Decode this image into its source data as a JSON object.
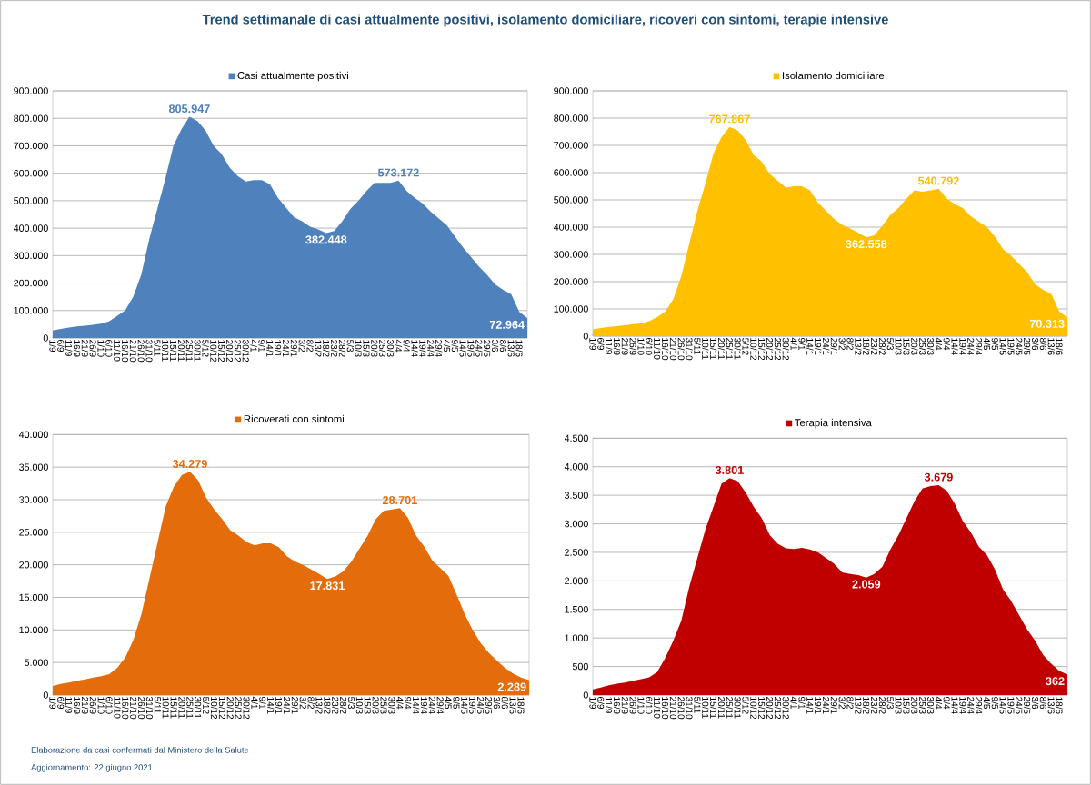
{
  "chart_data": [
    {
      "type": "area",
      "title": "Trend settimanale di casi attualmente positivi, isolamento domiciliare, ricoveri con sintomi, terapie intensive",
      "annotations": [
        "Elaborazione da casi confermati dal Ministero della Salute",
        "Aggiornamento: 22 giugno 2021"
      ],
      "categories": [
        "1/9",
        "6/9",
        "11/9",
        "16/9",
        "21/9",
        "26/9",
        "1/10",
        "6/10",
        "11/10",
        "16/10",
        "21/10",
        "26/10",
        "31/10",
        "5/11",
        "10/11",
        "15/11",
        "20/11",
        "25/11",
        "30/11",
        "5/12",
        "10/12",
        "15/12",
        "20/12",
        "25/12",
        "30/12",
        "4/1",
        "9/1",
        "14/1",
        "19/1",
        "24/1",
        "29/1",
        "3/2",
        "8/2",
        "13/2",
        "18/2",
        "23/2",
        "28/2",
        "5/3",
        "10/3",
        "15/3",
        "20/3",
        "25/3",
        "30/3",
        "4/4",
        "9/4",
        "14/4",
        "19/4",
        "24/4",
        "29/4",
        "4/5",
        "9/5",
        "14/5",
        "19/5",
        "24/5",
        "29/5",
        "3/6",
        "8/6",
        "13/6",
        "18/6",
        null
      ],
      "series": [
        {
          "name": "Casi attualmente positivi",
          "color": "#4f81bd",
          "values": [
            27000,
            33000,
            38000,
            42000,
            45000,
            48000,
            52000,
            60000,
            80000,
            100000,
            150000,
            230000,
            360000,
            470000,
            580000,
            700000,
            760000,
            805947,
            790000,
            755000,
            700000,
            670000,
            620000,
            590000,
            570000,
            575000,
            575000,
            560000,
            510000,
            475000,
            440000,
            425000,
            405000,
            395000,
            382448,
            390000,
            425000,
            470000,
            500000,
            535000,
            565000,
            565000,
            565000,
            573172,
            535000,
            510000,
            490000,
            460000,
            435000,
            410000,
            370000,
            330000,
            295000,
            260000,
            230000,
            195000,
            175000,
            160000,
            95000,
            72964
          ],
          "value_labels": [
            null,
            null,
            null,
            null,
            null,
            null,
            null,
            null,
            null,
            null,
            null,
            null,
            null,
            null,
            null,
            null,
            null,
            "805.947",
            null,
            null,
            null,
            null,
            null,
            null,
            null,
            null,
            null,
            null,
            null,
            null,
            null,
            null,
            null,
            null,
            "382.448",
            null,
            null,
            null,
            null,
            null,
            null,
            null,
            null,
            "573.172",
            null,
            null,
            null,
            null,
            null,
            null,
            null,
            null,
            null,
            null,
            null,
            null,
            null,
            null,
            null,
            "72.964"
          ]
        }
      ],
      "ylim": [
        0,
        900000
      ],
      "yticks": [
        0,
        {
          "value": 100000,
          "label": "100.000"
        },
        {
          "value": 200000,
          "label": "200.000"
        },
        {
          "value": 300000,
          "label": "300.000"
        },
        {
          "value": 400000,
          "label": "400.000"
        },
        {
          "value": 500000,
          "label": "500.000"
        },
        {
          "value": 600000,
          "label": "600.000"
        },
        {
          "value": 700000,
          "label": "700.000"
        },
        {
          "value": 800000,
          "label": "800.000"
        },
        {
          "value": 900000,
          "label": "900.000"
        }
      ],
      "grid": "y",
      "legend": "top"
    },
    {
      "type": "area",
      "categories": [
        "1/9",
        "6/9",
        "11/9",
        "16/9",
        "21/9",
        "26/9",
        "1/10",
        "6/10",
        "11/10",
        "16/10",
        "21/10",
        "26/10",
        "31/10",
        "5/11",
        "10/11",
        "15/11",
        "20/11",
        "25/11",
        "30/11",
        "5/12",
        "10/12",
        "15/12",
        "20/12",
        "25/12",
        "30/12",
        "4/1",
        "9/1",
        "14/1",
        "19/1",
        "24/1",
        "29/1",
        "3/2",
        "8/2",
        "13/2",
        "18/2",
        "23/2",
        "28/2",
        "5/3",
        "10/3",
        "15/3",
        "20/3",
        "25/3",
        "30/3",
        "4/4",
        "9/4",
        "14/4",
        "19/4",
        "24/4",
        "29/4",
        "4/5",
        "9/5",
        "14/5",
        "19/5",
        "24/5",
        "29/5",
        "3/6",
        "8/6",
        "13/6",
        "18/6",
        null
      ],
      "series": [
        {
          "name": "Isolamento domiciliare",
          "color": "#ffc000",
          "values": [
            25000,
            30000,
            34000,
            37000,
            40000,
            44000,
            47000,
            55000,
            70000,
            90000,
            135000,
            220000,
            340000,
            460000,
            560000,
            670000,
            730000,
            767867,
            755000,
            720000,
            665000,
            640000,
            595000,
            570000,
            545000,
            550000,
            550000,
            535000,
            490000,
            460000,
            430000,
            408000,
            395000,
            380000,
            362558,
            370000,
            405000,
            445000,
            470000,
            505000,
            535000,
            530000,
            535000,
            540792,
            505000,
            485000,
            470000,
            440000,
            420000,
            400000,
            365000,
            320000,
            295000,
            265000,
            235000,
            190000,
            170000,
            155000,
            90000,
            70313
          ],
          "value_labels": [
            null,
            null,
            null,
            null,
            null,
            null,
            null,
            null,
            null,
            null,
            null,
            null,
            null,
            null,
            null,
            null,
            null,
            "767.867",
            null,
            null,
            null,
            null,
            null,
            null,
            null,
            null,
            null,
            null,
            null,
            null,
            null,
            null,
            null,
            null,
            "362.558",
            null,
            null,
            null,
            null,
            null,
            null,
            null,
            null,
            "540.792",
            null,
            null,
            null,
            null,
            null,
            null,
            null,
            null,
            null,
            null,
            null,
            null,
            null,
            null,
            null,
            "70.313"
          ]
        }
      ],
      "ylim": [
        0,
        900000
      ],
      "yticks": [
        0,
        {
          "value": 100000,
          "label": "100.000"
        },
        {
          "value": 200000,
          "label": "200.000"
        },
        {
          "value": 300000,
          "label": "300.000"
        },
        {
          "value": 400000,
          "label": "400.000"
        },
        {
          "value": 500000,
          "label": "500.000"
        },
        {
          "value": 600000,
          "label": "600.000"
        },
        {
          "value": 700000,
          "label": "700.000"
        },
        {
          "value": 800000,
          "label": "800.000"
        },
        {
          "value": 900000,
          "label": "900.000"
        }
      ],
      "grid": "y",
      "legend": "top"
    },
    {
      "type": "area",
      "categories": [
        "1/9",
        "6/9",
        "11/9",
        "16/9",
        "21/9",
        "26/9",
        "1/10",
        "6/10",
        "11/10",
        "16/10",
        "21/10",
        "26/10",
        "31/10",
        "5/11",
        "10/11",
        "15/11",
        "20/11",
        "25/11",
        "30/11",
        "5/12",
        "10/12",
        "15/12",
        "20/12",
        "25/12",
        "30/12",
        "4/1",
        "9/1",
        "14/1",
        "19/1",
        "24/1",
        "29/1",
        "3/2",
        "8/2",
        "13/2",
        "18/2",
        "23/2",
        "28/2",
        "5/3",
        "10/3",
        "15/3",
        "20/3",
        "25/3",
        "30/3",
        "4/4",
        "9/4",
        "14/4",
        "19/4",
        "24/4",
        "29/4",
        "4/5",
        "9/5",
        "14/5",
        "19/5",
        "24/5",
        "29/5",
        "3/6",
        "8/6",
        "13/6",
        "18/6",
        null
      ],
      "series": [
        {
          "name": "Ricoverati con sintomi",
          "color": "#e46c0a",
          "values": [
            1400,
            1700,
            1900,
            2200,
            2400,
            2700,
            2900,
            3200,
            4200,
            5800,
            8500,
            12500,
            18000,
            23500,
            29000,
            32000,
            33800,
            34279,
            33000,
            30300,
            28500,
            27000,
            25300,
            24500,
            23500,
            23000,
            23300,
            23300,
            22700,
            21300,
            20500,
            20000,
            19300,
            18600,
            17831,
            18200,
            19000,
            20500,
            22500,
            24500,
            27000,
            28300,
            28500,
            28701,
            27200,
            24500,
            22800,
            20700,
            19500,
            18300,
            15500,
            12500,
            10000,
            8000,
            6500,
            5300,
            4200,
            3300,
            2700,
            2289
          ],
          "value_labels": [
            null,
            null,
            null,
            null,
            null,
            null,
            null,
            null,
            null,
            null,
            null,
            null,
            null,
            null,
            null,
            null,
            null,
            "34.279",
            null,
            null,
            null,
            null,
            null,
            null,
            null,
            null,
            null,
            null,
            null,
            null,
            null,
            null,
            null,
            null,
            "17.831",
            null,
            null,
            null,
            null,
            null,
            null,
            null,
            null,
            "28.701",
            null,
            null,
            null,
            null,
            null,
            null,
            null,
            null,
            null,
            null,
            null,
            null,
            null,
            null,
            null,
            "2.289"
          ]
        }
      ],
      "ylim": [
        0,
        40000
      ],
      "yticks": [
        0,
        {
          "value": 5000,
          "label": "5.000"
        },
        {
          "value": 10000,
          "label": "10.000"
        },
        {
          "value": 15000,
          "label": "15.000"
        },
        {
          "value": 20000,
          "label": "20.000"
        },
        {
          "value": 25000,
          "label": "25.000"
        },
        {
          "value": 30000,
          "label": "30.000"
        },
        {
          "value": 35000,
          "label": "35.000"
        },
        {
          "value": 40000,
          "label": "40.000"
        }
      ],
      "grid": "y",
      "legend": "top"
    },
    {
      "type": "area",
      "categories": [
        "1/9",
        "6/9",
        "11/9",
        "16/9",
        "21/9",
        "26/9",
        "1/10",
        "6/10",
        "11/10",
        "16/10",
        "21/10",
        "26/10",
        "31/10",
        "5/11",
        "10/11",
        "15/11",
        "20/11",
        "25/11",
        "30/11",
        "5/12",
        "10/12",
        "15/12",
        "20/12",
        "25/12",
        "30/12",
        "4/1",
        "9/1",
        "14/1",
        "19/1",
        "24/1",
        "29/1",
        "3/2",
        "8/2",
        "13/2",
        "18/2",
        "23/2",
        "28/2",
        "5/3",
        "10/3",
        "15/3",
        "20/3",
        "25/3",
        "30/3",
        "4/4",
        "9/4",
        "14/4",
        "19/4",
        "24/4",
        "29/4",
        "4/5",
        "9/5",
        "14/5",
        "19/5",
        "24/5",
        "29/5",
        "3/6",
        "8/6",
        "13/6",
        "18/6",
        null
      ],
      "series": [
        {
          "name": "Terapia intensiva",
          "color": "#c00000",
          "values": [
            100,
            130,
            170,
            200,
            220,
            250,
            280,
            310,
            400,
            650,
            950,
            1300,
            1900,
            2400,
            2900,
            3300,
            3700,
            3801,
            3750,
            3550,
            3300,
            3100,
            2800,
            2650,
            2570,
            2560,
            2580,
            2550,
            2500,
            2400,
            2300,
            2150,
            2120,
            2100,
            2059,
            2120,
            2250,
            2550,
            2800,
            3100,
            3400,
            3620,
            3660,
            3679,
            3580,
            3350,
            3050,
            2850,
            2600,
            2450,
            2200,
            1850,
            1650,
            1400,
            1150,
            950,
            700,
            550,
            420,
            362
          ],
          "value_labels": [
            null,
            null,
            null,
            null,
            null,
            null,
            null,
            null,
            null,
            null,
            null,
            null,
            null,
            null,
            null,
            null,
            null,
            "3.801",
            null,
            null,
            null,
            null,
            null,
            null,
            null,
            null,
            null,
            null,
            null,
            null,
            null,
            null,
            null,
            null,
            "2.059",
            null,
            null,
            null,
            null,
            null,
            null,
            null,
            null,
            "3.679",
            null,
            null,
            null,
            null,
            null,
            null,
            null,
            null,
            null,
            null,
            null,
            null,
            null,
            null,
            null,
            "362"
          ]
        }
      ],
      "ylim": [
        0,
        4500
      ],
      "yticks": [
        0,
        {
          "value": 500,
          "label": "500"
        },
        {
          "value": 1000,
          "label": "1.000"
        },
        {
          "value": 1500,
          "label": "1.500"
        },
        {
          "value": 2000,
          "label": "2.000"
        },
        {
          "value": 2500,
          "label": "2.500"
        },
        {
          "value": 3000,
          "label": "3.000"
        },
        {
          "value": 3500,
          "label": "3.500"
        },
        {
          "value": 4000,
          "label": "4.000"
        },
        {
          "value": 4500,
          "label": "4.500"
        }
      ],
      "grid": "y",
      "legend": "top"
    }
  ]
}
